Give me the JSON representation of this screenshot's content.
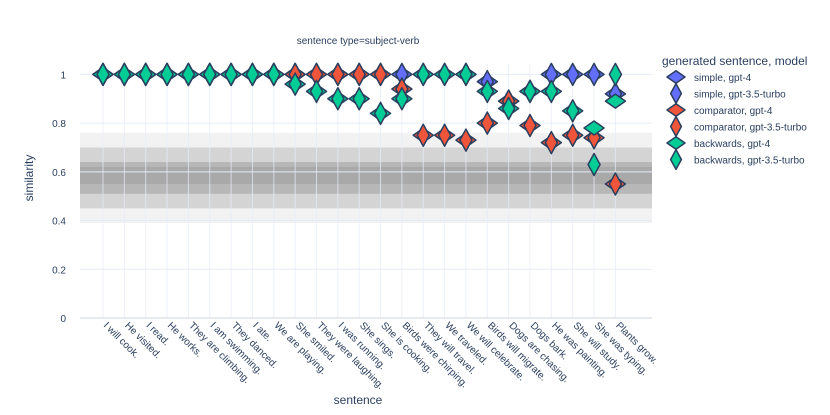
{
  "chart_data": {
    "type": "scatter",
    "title": "sentence type=subject-verb",
    "xlabel": "sentence",
    "ylabel": "similarity",
    "ylim": [
      0,
      1.1
    ],
    "y_ticks": [
      0,
      0.2,
      0.4,
      0.6,
      0.8,
      1
    ],
    "y_tick_labels": [
      "0",
      "0.2",
      "0.4",
      "0.6",
      "0.8",
      "1"
    ],
    "grid": true,
    "categories": [
      "I will cook.",
      "He visited.",
      "I read.",
      "He works.",
      "They are climbing.",
      "I am swimming.",
      "They danced.",
      "I ate.",
      "We are playing.",
      "She smiled.",
      "They were laughing.",
      "I was running.",
      "She sings.",
      "She is cooking.",
      "Birds were chirping.",
      "They will travel.",
      "We traveled.",
      "We will celebrate.",
      "Birds will migrate.",
      "Dogs are chasing.",
      "Dogs bark.",
      "He was painting.",
      "She will study.",
      "She was typing.",
      "Plants grow."
    ],
    "reference_bands": [
      {
        "y0": 0.39,
        "y1": 0.76,
        "color": "#f2f2f2"
      },
      {
        "y0": 0.45,
        "y1": 0.7,
        "color": "#d4d4d4"
      },
      {
        "y0": 0.51,
        "y1": 0.64,
        "color": "#b7b7b7"
      },
      {
        "y0": 0.55,
        "y1": 0.62,
        "color": "#a9a9a9"
      }
    ],
    "legend_title": "generated sentence, model",
    "legend_position": "right",
    "series": [
      {
        "name": "simple, gpt-4",
        "color": "#636efa",
        "shape": "diamond-wide",
        "values": [
          1,
          1,
          1,
          1,
          1,
          1,
          1,
          1,
          1,
          1,
          1,
          1,
          1,
          1,
          1,
          1,
          1,
          1,
          0.97,
          0.89,
          0.93,
          1,
          1,
          1,
          0.92
        ]
      },
      {
        "name": "simple, gpt-3.5-turbo",
        "color": "#636efa",
        "shape": "diamond-tall",
        "values": [
          1,
          1,
          1,
          1,
          1,
          1,
          1,
          1,
          1,
          1,
          1,
          1,
          1,
          1,
          1,
          1,
          1,
          1,
          0.97,
          0.89,
          0.93,
          1,
          1,
          1,
          0.92
        ]
      },
      {
        "name": "comparator, gpt-4",
        "color": "#ef553b",
        "shape": "diamond-wide",
        "values": [
          1,
          1,
          1,
          1,
          1,
          1,
          1,
          1,
          1,
          1,
          1,
          1,
          1,
          1,
          0.94,
          0.75,
          0.75,
          0.73,
          0.8,
          0.89,
          0.79,
          0.72,
          0.75,
          0.74,
          0.55
        ]
      },
      {
        "name": "comparator, gpt-3.5-turbo",
        "color": "#ef553b",
        "shape": "diamond-tall",
        "values": [
          1,
          1,
          1,
          1,
          1,
          1,
          1,
          1,
          1,
          1,
          1,
          1,
          1,
          1,
          0.94,
          0.75,
          0.75,
          0.73,
          0.8,
          0.89,
          0.79,
          0.72,
          0.75,
          0.74,
          0.55
        ]
      },
      {
        "name": "backwards, gpt-4",
        "color": "#00cc96",
        "shape": "diamond-wide",
        "values": [
          1,
          1,
          1,
          1,
          1,
          1,
          1,
          1,
          1,
          0.96,
          0.93,
          0.9,
          0.9,
          0.84,
          0.9,
          1,
          1,
          1,
          0.93,
          0.86,
          0.93,
          0.93,
          0.85,
          0.78,
          0.89
        ]
      },
      {
        "name": "backwards, gpt-3.5-turbo",
        "color": "#00cc96",
        "shape": "diamond-tall",
        "values": [
          1,
          1,
          1,
          1,
          1,
          1,
          1,
          1,
          1,
          0.96,
          0.93,
          0.9,
          0.9,
          0.84,
          0.9,
          1,
          1,
          1,
          0.93,
          0.86,
          0.93,
          0.93,
          0.85,
          0.63,
          1
        ]
      }
    ]
  }
}
